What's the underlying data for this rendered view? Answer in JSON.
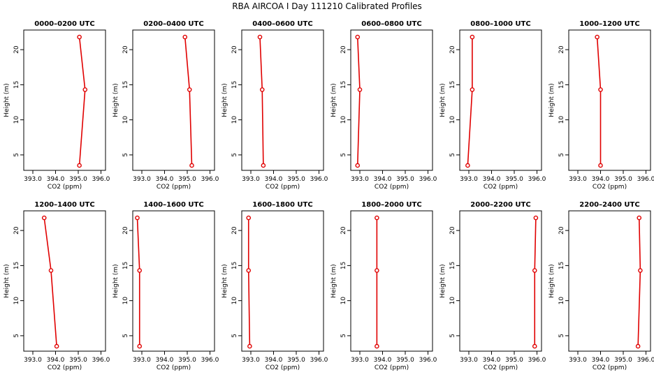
{
  "title": "RBA AIRCOA I  Day 111210  Calibrated Profiles",
  "colors": {
    "series": "#e00000",
    "axis": "#000000"
  },
  "chart_data": [
    {
      "type": "line",
      "title": "0000–0200 UTC",
      "xlabel": "CO2 (ppm)",
      "ylabel": "Height (m)",
      "xlim": [
        392.6,
        396.2
      ],
      "ylim": [
        2.8,
        22.8
      ],
      "xticks": [
        "393.0",
        "394.0",
        "395.0",
        "396.0"
      ],
      "yticks": [
        "5",
        "10",
        "15",
        "20"
      ],
      "x": [
        395.05,
        395.3,
        395.05
      ],
      "y": [
        3.5,
        14.3,
        21.8
      ]
    },
    {
      "type": "line",
      "title": "0200–0400 UTC",
      "xlabel": "CO2 (ppm)",
      "ylabel": "Height (m)",
      "xlim": [
        392.6,
        396.2
      ],
      "ylim": [
        2.8,
        22.8
      ],
      "xticks": [
        "393.0",
        "394.0",
        "395.0",
        "396.0"
      ],
      "yticks": [
        "5",
        "10",
        "15",
        "20"
      ],
      "x": [
        395.2,
        395.1,
        394.9
      ],
      "y": [
        3.5,
        14.3,
        21.8
      ]
    },
    {
      "type": "line",
      "title": "0400–0600 UTC",
      "xlabel": "CO2 (ppm)",
      "ylabel": "Height (m)",
      "xlim": [
        392.6,
        396.2
      ],
      "ylim": [
        2.8,
        22.8
      ],
      "xticks": [
        "393.0",
        "394.0",
        "395.0",
        "396.0"
      ],
      "yticks": [
        "5",
        "10",
        "15",
        "20"
      ],
      "x": [
        393.55,
        393.5,
        393.4
      ],
      "y": [
        3.5,
        14.3,
        21.8
      ]
    },
    {
      "type": "line",
      "title": "0600–0800 UTC",
      "xlabel": "CO2 (ppm)",
      "ylabel": "Height (m)",
      "xlim": [
        392.6,
        396.2
      ],
      "ylim": [
        2.8,
        22.8
      ],
      "xticks": [
        "393.0",
        "394.0",
        "395.0",
        "396.0"
      ],
      "yticks": [
        "5",
        "10",
        "15",
        "20"
      ],
      "x": [
        392.9,
        393.0,
        392.9
      ],
      "y": [
        3.5,
        14.3,
        21.8
      ]
    },
    {
      "type": "line",
      "title": "0800–1000 UTC",
      "xlabel": "CO2 (ppm)",
      "ylabel": "Height (m)",
      "xlim": [
        392.6,
        396.2
      ],
      "ylim": [
        2.8,
        22.8
      ],
      "xticks": [
        "393.0",
        "394.0",
        "395.0",
        "396.0"
      ],
      "yticks": [
        "5",
        "10",
        "15",
        "20"
      ],
      "x": [
        392.95,
        393.15,
        393.15
      ],
      "y": [
        3.5,
        14.3,
        21.8
      ]
    },
    {
      "type": "line",
      "title": "1000–1200 UTC",
      "xlabel": "CO2 (ppm)",
      "ylabel": "Height (m)",
      "xlim": [
        392.6,
        396.2
      ],
      "ylim": [
        2.8,
        22.8
      ],
      "xticks": [
        "393.0",
        "394.0",
        "395.0",
        "396.0"
      ],
      "yticks": [
        "5",
        "10",
        "15",
        "20"
      ],
      "x": [
        394.0,
        394.0,
        393.85
      ],
      "y": [
        3.5,
        14.3,
        21.8
      ]
    },
    {
      "type": "line",
      "title": "1200–1400 UTC",
      "xlabel": "CO2 (ppm)",
      "ylabel": "Height (m)",
      "xlim": [
        392.6,
        396.2
      ],
      "ylim": [
        2.8,
        22.8
      ],
      "xticks": [
        "393.0",
        "394.0",
        "395.0",
        "396.0"
      ],
      "yticks": [
        "5",
        "10",
        "15",
        "20"
      ],
      "x": [
        394.05,
        393.8,
        393.5
      ],
      "y": [
        3.5,
        14.3,
        21.8
      ]
    },
    {
      "type": "line",
      "title": "1400–1600 UTC",
      "xlabel": "CO2 (ppm)",
      "ylabel": "Height (m)",
      "xlim": [
        392.6,
        396.2
      ],
      "ylim": [
        2.8,
        22.8
      ],
      "xticks": [
        "393.0",
        "394.0",
        "395.0",
        "396.0"
      ],
      "yticks": [
        "5",
        "10",
        "15",
        "20"
      ],
      "x": [
        392.9,
        392.9,
        392.8
      ],
      "y": [
        3.5,
        14.3,
        21.8
      ]
    },
    {
      "type": "line",
      "title": "1600–1800 UTC",
      "xlabel": "CO2 (ppm)",
      "ylabel": "Height (m)",
      "xlim": [
        392.6,
        396.2
      ],
      "ylim": [
        2.8,
        22.8
      ],
      "xticks": [
        "393.0",
        "394.0",
        "395.0",
        "396.0"
      ],
      "yticks": [
        "5",
        "10",
        "15",
        "20"
      ],
      "x": [
        392.95,
        392.9,
        392.9
      ],
      "y": [
        3.5,
        14.3,
        21.8
      ]
    },
    {
      "type": "line",
      "title": "1800–2000 UTC",
      "xlabel": "CO2 (ppm)",
      "ylabel": "Height (m)",
      "xlim": [
        392.6,
        396.2
      ],
      "ylim": [
        2.8,
        22.8
      ],
      "xticks": [
        "393.0",
        "394.0",
        "395.0",
        "396.0"
      ],
      "yticks": [
        "5",
        "10",
        "15",
        "20"
      ],
      "x": [
        393.75,
        393.75,
        393.75
      ],
      "y": [
        3.5,
        14.3,
        21.8
      ]
    },
    {
      "type": "line",
      "title": "2000–2200 UTC",
      "xlabel": "CO2 (ppm)",
      "ylabel": "Height (m)",
      "xlim": [
        392.6,
        396.2
      ],
      "ylim": [
        2.8,
        22.8
      ],
      "xticks": [
        "393.0",
        "394.0",
        "395.0",
        "396.0"
      ],
      "yticks": [
        "5",
        "10",
        "15",
        "20"
      ],
      "x": [
        395.9,
        395.9,
        395.95
      ],
      "y": [
        3.5,
        14.3,
        21.8
      ]
    },
    {
      "type": "line",
      "title": "2200–2400 UTC",
      "xlabel": "CO2 (ppm)",
      "ylabel": "Height (m)",
      "xlim": [
        392.6,
        396.2
      ],
      "ylim": [
        2.8,
        22.8
      ],
      "xticks": [
        "393.0",
        "394.0",
        "395.0",
        "396.0"
      ],
      "yticks": [
        "5",
        "10",
        "15",
        "20"
      ],
      "x": [
        395.65,
        395.75,
        395.7
      ],
      "y": [
        3.5,
        14.3,
        21.8
      ]
    }
  ]
}
